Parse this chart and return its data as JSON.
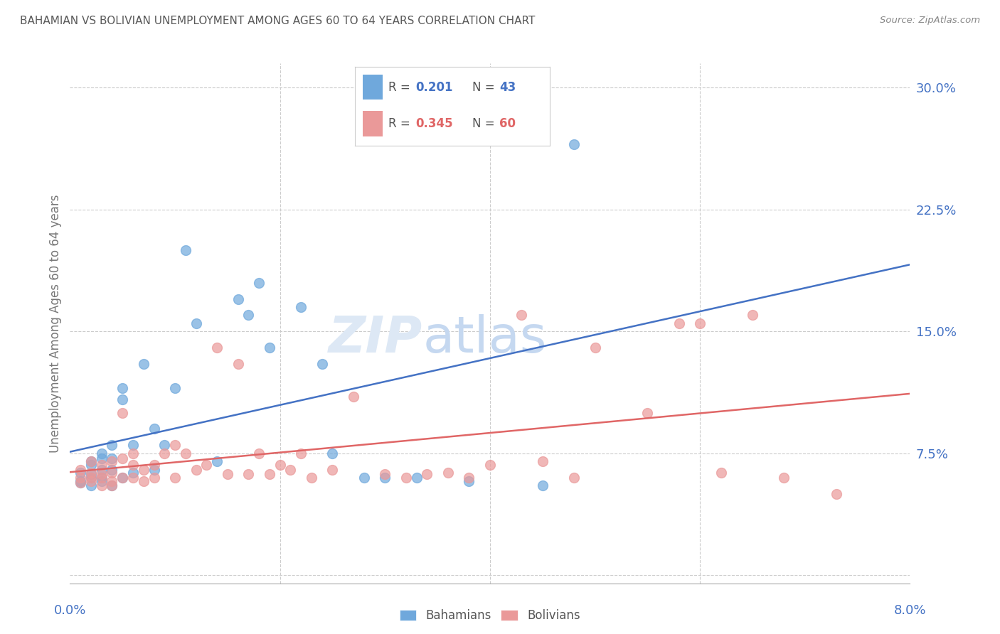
{
  "title": "BAHAMIAN VS BOLIVIAN UNEMPLOYMENT AMONG AGES 60 TO 64 YEARS CORRELATION CHART",
  "source": "Source: ZipAtlas.com",
  "ylabel": "Unemployment Among Ages 60 to 64 years",
  "ytick_vals": [
    0.0,
    0.075,
    0.15,
    0.225,
    0.3
  ],
  "ytick_labels": [
    "",
    "7.5%",
    "15.0%",
    "22.5%",
    "30.0%"
  ],
  "xlim": [
    0.0,
    0.08
  ],
  "ylim": [
    -0.005,
    0.315
  ],
  "watermark": "ZIPatlas",
  "bahamian_color": "#6fa8dc",
  "bolivian_color": "#ea9999",
  "line_blue": "#4472c4",
  "line_pink": "#e06666",
  "title_color": "#595959",
  "axis_label_color": "#4472c4",
  "bahamians_x": [
    0.001,
    0.001,
    0.001,
    0.002,
    0.002,
    0.002,
    0.002,
    0.002,
    0.003,
    0.003,
    0.003,
    0.003,
    0.003,
    0.004,
    0.004,
    0.004,
    0.004,
    0.005,
    0.005,
    0.005,
    0.006,
    0.006,
    0.007,
    0.008,
    0.008,
    0.009,
    0.01,
    0.011,
    0.012,
    0.014,
    0.016,
    0.017,
    0.018,
    0.019,
    0.022,
    0.024,
    0.025,
    0.028,
    0.03,
    0.033,
    0.038,
    0.045,
    0.048
  ],
  "bahamians_y": [
    0.057,
    0.063,
    0.058,
    0.068,
    0.06,
    0.055,
    0.062,
    0.07,
    0.072,
    0.065,
    0.06,
    0.058,
    0.075,
    0.08,
    0.072,
    0.065,
    0.055,
    0.115,
    0.108,
    0.06,
    0.08,
    0.063,
    0.13,
    0.09,
    0.065,
    0.08,
    0.115,
    0.2,
    0.155,
    0.07,
    0.17,
    0.16,
    0.18,
    0.14,
    0.165,
    0.13,
    0.075,
    0.06,
    0.06,
    0.06,
    0.058,
    0.055,
    0.265
  ],
  "bolivians_x": [
    0.001,
    0.001,
    0.001,
    0.002,
    0.002,
    0.002,
    0.002,
    0.003,
    0.003,
    0.003,
    0.003,
    0.004,
    0.004,
    0.004,
    0.004,
    0.005,
    0.005,
    0.005,
    0.006,
    0.006,
    0.006,
    0.007,
    0.007,
    0.008,
    0.008,
    0.009,
    0.01,
    0.01,
    0.011,
    0.012,
    0.013,
    0.014,
    0.015,
    0.016,
    0.017,
    0.018,
    0.019,
    0.02,
    0.021,
    0.022,
    0.023,
    0.025,
    0.027,
    0.03,
    0.032,
    0.034,
    0.036,
    0.038,
    0.04,
    0.043,
    0.045,
    0.048,
    0.05,
    0.055,
    0.058,
    0.06,
    0.062,
    0.065,
    0.068,
    0.073
  ],
  "bolivians_y": [
    0.06,
    0.065,
    0.057,
    0.06,
    0.063,
    0.058,
    0.07,
    0.068,
    0.062,
    0.06,
    0.055,
    0.07,
    0.063,
    0.058,
    0.055,
    0.1,
    0.072,
    0.06,
    0.075,
    0.068,
    0.06,
    0.065,
    0.058,
    0.068,
    0.06,
    0.075,
    0.08,
    0.06,
    0.075,
    0.065,
    0.068,
    0.14,
    0.062,
    0.13,
    0.062,
    0.075,
    0.062,
    0.068,
    0.065,
    0.075,
    0.06,
    0.065,
    0.11,
    0.062,
    0.06,
    0.062,
    0.063,
    0.06,
    0.068,
    0.16,
    0.07,
    0.06,
    0.14,
    0.1,
    0.155,
    0.155,
    0.063,
    0.16,
    0.06,
    0.05
  ]
}
